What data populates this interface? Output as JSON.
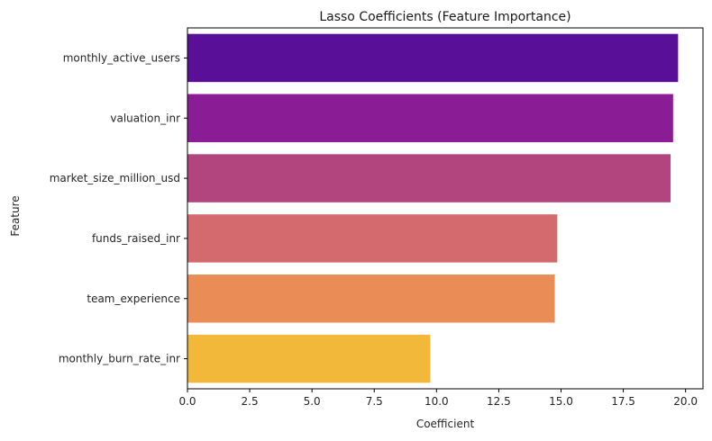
{
  "chart_data": {
    "type": "bar",
    "orientation": "horizontal",
    "title": "Lasso Coefficients (Feature Importance)",
    "xlabel": "Coefficient",
    "ylabel": "Feature",
    "categories": [
      "monthly_active_users",
      "valuation_inr",
      "market_size_million_usd",
      "funds_raised_inr",
      "team_experience",
      "monthly_burn_rate_inr"
    ],
    "values": [
      19.7,
      19.5,
      19.4,
      14.85,
      14.75,
      9.75
    ],
    "colors": [
      "#5a0f98",
      "#8a1c96",
      "#b2447e",
      "#d46a6e",
      "#ea8c56",
      "#f1b83a"
    ],
    "xlim": [
      0,
      20.7
    ],
    "xticks": [
      0.0,
      2.5,
      5.0,
      7.5,
      10.0,
      12.5,
      15.0,
      17.5,
      20.0
    ],
    "xtick_labels": [
      "0.0",
      "2.5",
      "5.0",
      "7.5",
      "10.0",
      "12.5",
      "15.0",
      "17.5",
      "20.0"
    ],
    "grid": false
  }
}
